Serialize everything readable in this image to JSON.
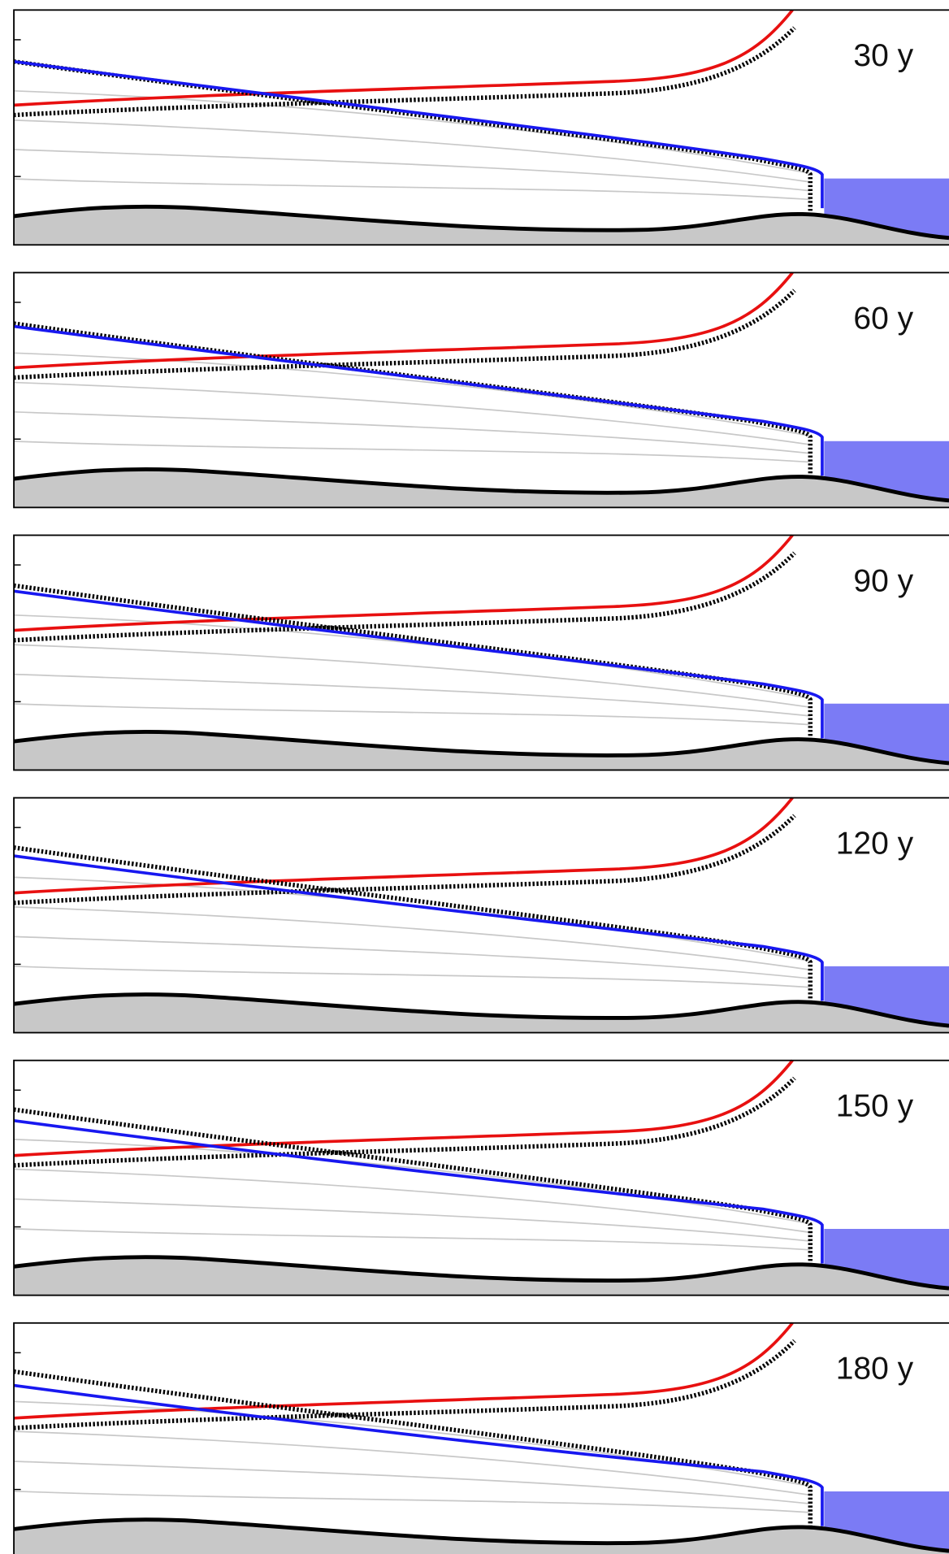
{
  "panels": [
    {
      "label": "30 y"
    },
    {
      "label": "60 y"
    },
    {
      "label": "90 y"
    },
    {
      "label": "120 y"
    },
    {
      "label": "150 y"
    },
    {
      "label": "180 y"
    }
  ]
}
